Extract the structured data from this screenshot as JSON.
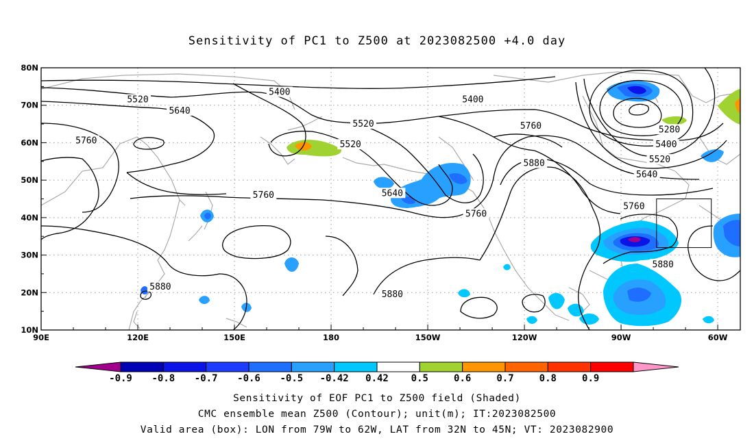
{
  "title": "Sensitivity of PC1 to Z500 at 2023082500 +4.0 day",
  "map": {
    "lon_labels": [
      "90E",
      "120E",
      "150E",
      "180",
      "150W",
      "120W",
      "90W",
      "60W"
    ],
    "lat_labels": [
      "80N",
      "70N",
      "60N",
      "50N",
      "40N",
      "30N",
      "20N",
      "10N"
    ],
    "contour_labels": [
      {
        "text": "5400",
        "lon": 164,
        "lat": 73.5
      },
      {
        "text": "5400",
        "lon": 224,
        "lat": 71.5
      },
      {
        "text": "5520",
        "lon": 120,
        "lat": 71.5
      },
      {
        "text": "5640",
        "lon": 133,
        "lat": 68.5
      },
      {
        "text": "5760",
        "lon": 104,
        "lat": 60.5
      },
      {
        "text": "5520",
        "lon": 190,
        "lat": 65
      },
      {
        "text": "5520",
        "lon": 186,
        "lat": 59.5
      },
      {
        "text": "5760",
        "lon": 242,
        "lat": 64.5
      },
      {
        "text": "5880",
        "lon": 243,
        "lat": 54.5
      },
      {
        "text": "5640",
        "lon": 199,
        "lat": 46.5
      },
      {
        "text": "5760",
        "lon": 159,
        "lat": 46
      },
      {
        "text": "5760",
        "lon": 225,
        "lat": 41
      },
      {
        "text": "5280",
        "lon": 285,
        "lat": 63.5
      },
      {
        "text": "5400",
        "lon": 284,
        "lat": 59.5
      },
      {
        "text": "5520",
        "lon": 282,
        "lat": 55.5
      },
      {
        "text": "5640",
        "lon": 278,
        "lat": 51.5
      },
      {
        "text": "5760",
        "lon": 274,
        "lat": 43
      },
      {
        "text": "5880",
        "lon": 283,
        "lat": 27.5
      },
      {
        "text": "5880",
        "lon": 127,
        "lat": 21.5
      },
      {
        "text": "5880",
        "lon": 199,
        "lat": 19.5
      }
    ],
    "valid_box": {
      "lon_min": 281,
      "lon_max": 298,
      "lat_min": 32,
      "lat_max": 45
    }
  },
  "colorbar": {
    "labels": [
      "-0.9",
      "-0.8",
      "-0.7",
      "-0.6",
      "-0.5",
      "-0.42",
      "0.42",
      "0.5",
      "0.6",
      "0.7",
      "0.8",
      "0.9"
    ],
    "colors": [
      "#a0008c",
      "#0000b4",
      "#0a14e6",
      "#1e3cff",
      "#1e6eff",
      "#28a0ff",
      "#00c8ff",
      "#ffffff",
      "#a0d232",
      "#ff9600",
      "#ff6400",
      "#ff3200",
      "#ff0000",
      "#ff96c8"
    ]
  },
  "captions": {
    "line1": "Sensitivity of EOF PC1 to Z500 field (Shaded)",
    "line2": "CMC ensemble mean Z500 (Contour); unit(m); IT:2023082500",
    "line3": "Valid area (box): LON from 79W to 62W, LAT from 32N to 45N; VT: 2023082900"
  }
}
